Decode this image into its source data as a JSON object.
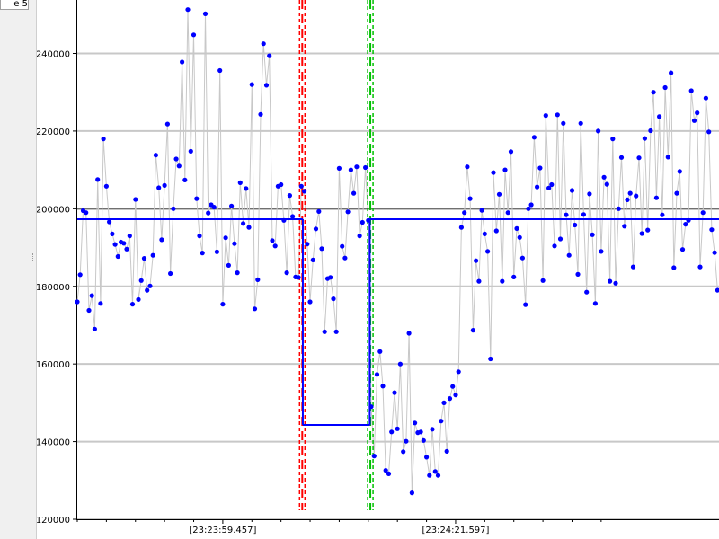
{
  "tab_label": "e 5",
  "chart_data": {
    "type": "scatter",
    "title": "",
    "xlabel": "",
    "ylabel": "",
    "ylim": [
      120000,
      254000
    ],
    "x_tick_labels": [
      "[23:23:59.457]",
      "[23:24:21.597]"
    ],
    "y_ticks": [
      120000,
      140000,
      160000,
      180000,
      200000,
      220000,
      240000
    ],
    "grid": "horizontal",
    "mean_level": 200000,
    "segments": [
      {
        "name": "",
        "from_index": 0,
        "to_index": 77,
        "level": 197300
      },
      {
        "name": "",
        "from_index": 78,
        "to_index": 100,
        "level": 144300
      },
      {
        "name": "",
        "from_index": 101,
        "to_index": 184,
        "level": 197300
      }
    ],
    "markers": [
      {
        "index": 77.3,
        "color": "#ff0000"
      },
      {
        "index": 100.7,
        "color": "#00c000"
      }
    ],
    "series": [
      {
        "marker_color": "#0000ff",
        "line_color": "#c8c8c8",
        "values": [
          176000,
          183000,
          199500,
          199000,
          173800,
          177600,
          169000,
          207500,
          175600,
          218000,
          205800,
          196600,
          193500,
          190800,
          187700,
          191400,
          191100,
          189600,
          193000,
          175400,
          202400,
          176600,
          181500,
          187200,
          179000,
          180100,
          188000,
          213800,
          205400,
          192000,
          206000,
          221800,
          183300,
          200000,
          212800,
          211000,
          237800,
          207400,
          251300,
          214800,
          244800,
          202600,
          193000,
          188600,
          250200,
          198900,
          201000,
          200400,
          188900,
          235600,
          175400,
          192500,
          185400,
          200700,
          191000,
          183500,
          206700,
          196200,
          205200,
          195200,
          232000,
          174200,
          181700,
          224300,
          242500,
          231800,
          239400,
          191800,
          190400,
          205800,
          206200,
          197000,
          183500,
          203400,
          198000,
          182400,
          182300,
          205800,
          204500,
          190900,
          176000,
          186800,
          194800,
          199300,
          189700,
          168300,
          182000,
          182300,
          176800,
          168300,
          210400,
          190300,
          187300,
          199200,
          210000,
          204000,
          210800,
          193000,
          196500,
          210600,
          197000,
          149000,
          136300,
          157300,
          163200,
          154300,
          132600,
          131700,
          142500,
          152600,
          143300,
          160000,
          137400,
          140100,
          167900,
          126800,
          144800,
          142300,
          142500,
          140300,
          136000,
          131300,
          143200,
          132300,
          131300,
          145300,
          150000,
          137500,
          151100,
          154200,
          152000,
          158000,
          195200,
          199000,
          210800,
          202600,
          168700,
          186600,
          181300,
          199600,
          193500,
          189000,
          161300,
          209300,
          194300,
          203700,
          181300,
          210000,
          199000,
          214700,
          182400,
          194900,
          192600,
          187300,
          175300,
          200000,
          201000,
          218400,
          205600,
          210500,
          181500,
          224000,
          205300,
          206200,
          190400,
          224200,
          192200,
          222000,
          198400,
          188000,
          204700,
          195800,
          183100,
          222000,
          198500,
          178500,
          203800,
          193300,
          175600,
          220000,
          189000,
          208100,
          206300,
          181300,
          218000,
          180800,
          200000,
          213200,
          195500,
          202300,
          204000,
          185000,
          203300,
          213100,
          193600,
          218100,
          194500,
          220100,
          230000,
          202800,
          223700,
          198400,
          231200,
          213300,
          235000,
          184800,
          204000,
          209600,
          189500,
          196000,
          197000,
          230400,
          222700,
          224700,
          185000,
          199000,
          228500,
          219800,
          194600,
          188700,
          179000
        ]
      }
    ]
  }
}
